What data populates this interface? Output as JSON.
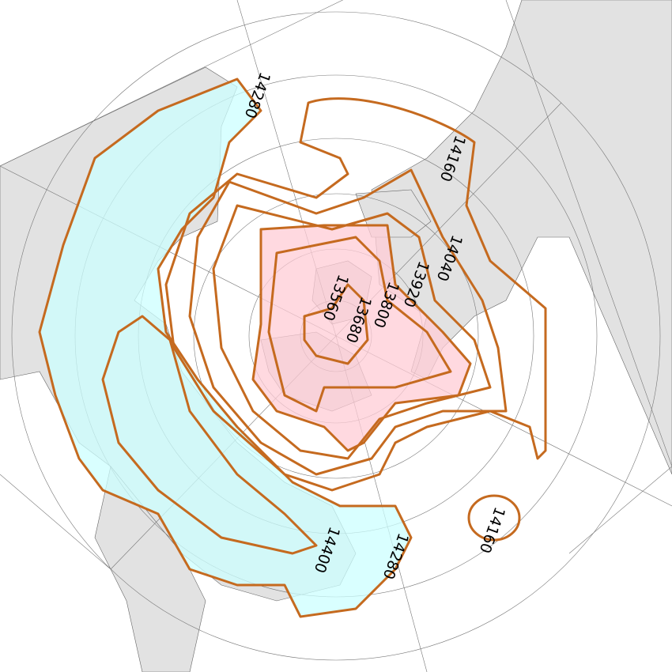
{
  "map": {
    "projection": "polar stereographic (north pole)",
    "colors": {
      "contour": "#c56a1f",
      "high_fill": "#ccffff",
      "low_fill": "#ffccd5",
      "land": "#e2e2e2",
      "ocean": "#ffffff"
    },
    "contour_labels": [
      {
        "id": "c14280a",
        "text": "14280"
      },
      {
        "id": "c14160a",
        "text": "14160"
      },
      {
        "id": "c14040",
        "text": "14040"
      },
      {
        "id": "c13920",
        "text": "13920"
      },
      {
        "id": "c13800",
        "text": "13800"
      },
      {
        "id": "c13680",
        "text": "13680"
      },
      {
        "id": "c13560",
        "text": "13560"
      },
      {
        "id": "c14400",
        "text": "14400"
      },
      {
        "id": "c14280b",
        "text": "14280"
      },
      {
        "id": "c14160b",
        "text": "14160"
      }
    ]
  }
}
